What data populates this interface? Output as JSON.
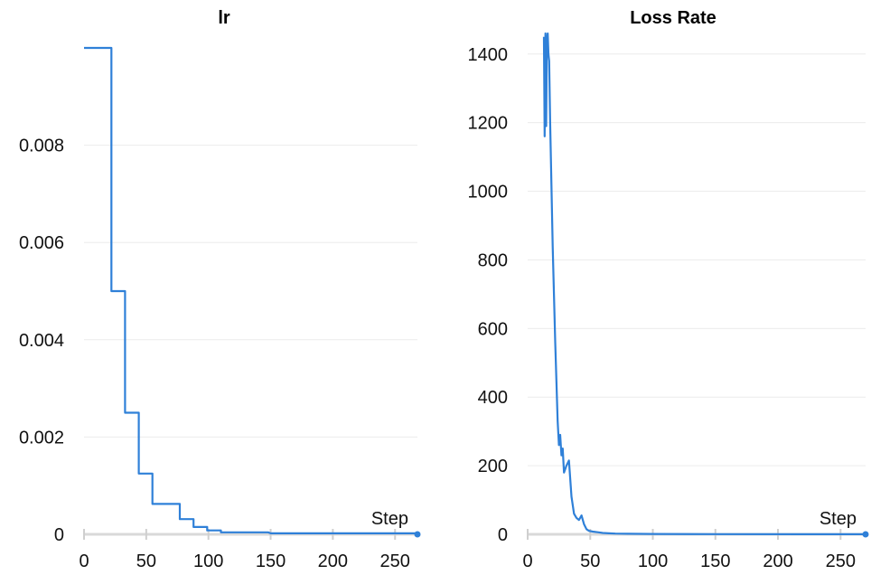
{
  "colors": {
    "series": "#2f80d8",
    "grid": "#ececec",
    "axis": "#d9d9d9"
  },
  "chart_data": [
    {
      "type": "line",
      "title": "lr",
      "xlabel": "Step",
      "ylabel": "",
      "xlim": [
        0,
        268
      ],
      "ylim": [
        0,
        0.01
      ],
      "xticks": [
        0,
        50,
        100,
        150,
        200,
        250
      ],
      "xtick_labels": [
        "0",
        "50",
        "100",
        "150",
        "200",
        "250"
      ],
      "yticks": [
        0,
        0.002,
        0.004,
        0.006,
        0.008
      ],
      "ytick_labels": [
        "0",
        "0.002",
        "0.004",
        "0.006",
        "0.008"
      ],
      "grid": true,
      "series": [
        {
          "x": [
            0,
            22,
            22,
            33,
            33,
            44,
            44,
            55,
            55,
            77,
            77,
            88,
            88,
            99,
            99,
            110,
            110,
            148,
            150,
            268
          ],
          "y": [
            0.01,
            0.01,
            0.005,
            0.005,
            0.0025,
            0.0025,
            0.00125,
            0.00125,
            0.000625,
            0.000625,
            0.0003125,
            0.0003125,
            0.00015,
            0.00015,
            8e-05,
            8e-05,
            4e-05,
            4e-05,
            2e-05,
            2e-05
          ]
        }
      ]
    },
    {
      "type": "line",
      "title": "Loss Rate",
      "xlabel": "Step",
      "ylabel": "",
      "xlim": [
        0,
        270
      ],
      "ylim": [
        0,
        1460
      ],
      "xticks": [
        0,
        50,
        100,
        150,
        200,
        250
      ],
      "xtick_labels": [
        "0",
        "50",
        "100",
        "150",
        "200",
        "250"
      ],
      "yticks": [
        0,
        200,
        400,
        600,
        800,
        1000,
        1200,
        1400
      ],
      "ytick_labels": [
        "0",
        "200",
        "400",
        "600",
        "800",
        "1000",
        "1200",
        "1400"
      ],
      "grid": true,
      "series": [
        {
          "x": [
            13,
            13.6,
            14.2,
            14.8,
            15.4,
            16,
            16.6,
            17.2,
            18,
            20,
            22,
            24,
            25,
            26,
            27,
            28,
            29,
            31,
            33,
            35,
            37,
            39,
            41,
            43,
            45,
            47,
            49,
            52,
            56,
            60,
            65,
            70,
            80,
            100,
            150,
            268
          ],
          "y": [
            1450,
            1160,
            1460,
            1190,
            1440,
            1460,
            1400,
            1380,
            1200,
            840,
            560,
            330,
            260,
            290,
            230,
            250,
            180,
            200,
            215,
            110,
            60,
            48,
            42,
            55,
            30,
            15,
            10,
            8,
            6,
            4,
            3,
            2,
            1.5,
            1,
            0.5,
            0.2
          ]
        }
      ]
    }
  ]
}
